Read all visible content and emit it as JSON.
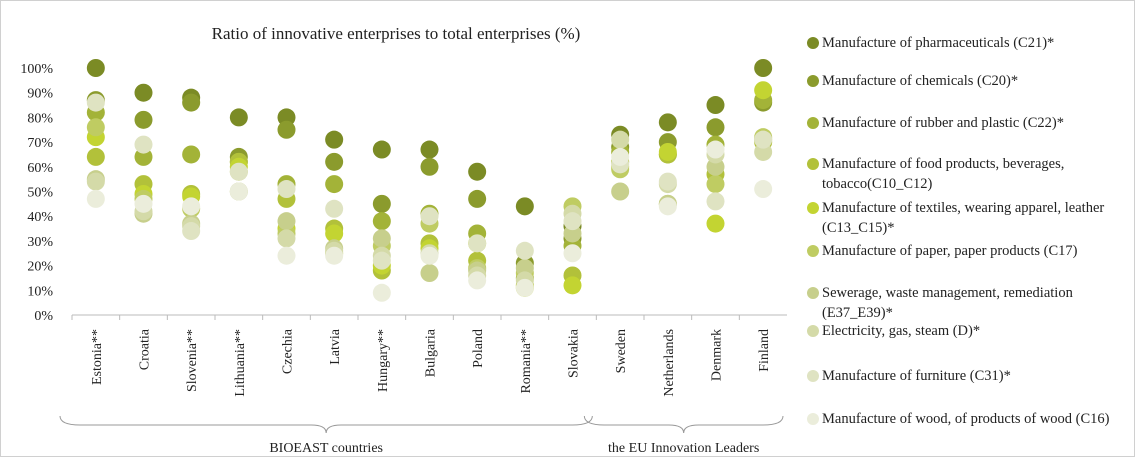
{
  "chart_data": {
    "type": "dot",
    "title": "Ratio of innovative enterprises to total enterprises (%)",
    "categories": [
      "Estonia**",
      "Croatia",
      "Slovenia**",
      "Lithuania**",
      "Czechia",
      "Latvia",
      "Hungary**",
      "Bulgaria",
      "Poland",
      "Romania**",
      "Slovakia",
      "Sweden",
      "Netherlands",
      "Denmark",
      "Finland"
    ],
    "groups": [
      {
        "label": "BIOEAST countries"
      },
      {
        "label": "the EU Innovation Leaders"
      }
    ],
    "ylim": [
      0,
      100
    ],
    "yticks": [
      {
        "value": 0,
        "label": "0%"
      },
      {
        "value": 10,
        "label": "10%"
      },
      {
        "value": 20,
        "label": "20%"
      },
      {
        "value": 30,
        "label": "30%"
      },
      {
        "value": 40,
        "label": "40%"
      },
      {
        "value": 50,
        "label": "50%"
      },
      {
        "value": 60,
        "label": "60%"
      },
      {
        "value": 70,
        "label": "70%"
      },
      {
        "value": 80,
        "label": "80%"
      },
      {
        "value": 90,
        "label": "90%"
      },
      {
        "value": 100,
        "label": "100%"
      }
    ],
    "series": [
      {
        "name": "Manufacture of pharmaceuticals (C21)*",
        "color": "#7b8b25",
        "values": [
          100,
          90,
          88,
          80,
          80,
          71,
          67,
          67,
          58,
          44,
          36,
          73,
          78,
          85,
          100
        ]
      },
      {
        "name": "Manufacture of chemicals  (C20)*",
        "color": "#8b9b2d",
        "values": [
          87,
          79,
          86,
          64,
          75,
          62,
          45,
          60,
          47,
          21,
          31,
          68,
          70,
          76,
          86
        ]
      },
      {
        "name": "Manufacture of rubber and plastic (C22)*",
        "color": "#a3b338",
        "values": [
          82,
          64,
          65,
          62,
          53,
          53,
          38,
          41,
          33,
          15,
          28,
          66,
          65,
          69,
          87
        ]
      },
      {
        "name": "Manufacture of food products, beverages, tobacco(C10_C12)",
        "color": "#b2c13a",
        "values": [
          64,
          53,
          49,
          62,
          47,
          35,
          18,
          29,
          22,
          12,
          16,
          62,
          65,
          57,
          70
        ]
      },
      {
        "name": "Manufacture of textiles, wearing apparel, leather (C13_C15)*",
        "color": "#c3d432",
        "values": [
          72,
          49,
          48,
          60,
          35,
          33,
          20,
          27,
          29,
          11,
          12,
          60,
          66,
          37,
          91
        ]
      },
      {
        "name": "Manufacture of paper, paper products (C17)",
        "color": "#bfcc62",
        "values": [
          76,
          47,
          43,
          58,
          33,
          25,
          28,
          37,
          19,
          17,
          44,
          59,
          45,
          53,
          72
        ]
      },
      {
        "name": "Sewerage, waste management, remediation (E37_E39)*",
        "color": "#c7cf8c",
        "values": [
          55,
          41,
          37,
          50,
          38,
          27,
          31,
          17,
          18,
          19,
          33,
          50,
          45,
          60,
          71
        ]
      },
      {
        "name": "Electricity, gas, steam (D)*",
        "color": "#d4daa8",
        "values": [
          54,
          42,
          36,
          50,
          31,
          26,
          24,
          25,
          16,
          14,
          41,
          71,
          53,
          65,
          66
        ]
      },
      {
        "name": "Manufacture of furniture (C31)*",
        "color": "#dfe3c2",
        "values": [
          86,
          69,
          34,
          58,
          51,
          43,
          22,
          40,
          29,
          26,
          38,
          61,
          54,
          46,
          71
        ]
      },
      {
        "name": "Manufacture of wood, of products of wood (C16)",
        "color": "#ebeddb",
        "values": [
          47,
          45,
          44,
          50,
          24,
          24,
          9,
          24,
          14,
          11,
          25,
          64,
          44,
          67,
          51
        ]
      }
    ]
  }
}
